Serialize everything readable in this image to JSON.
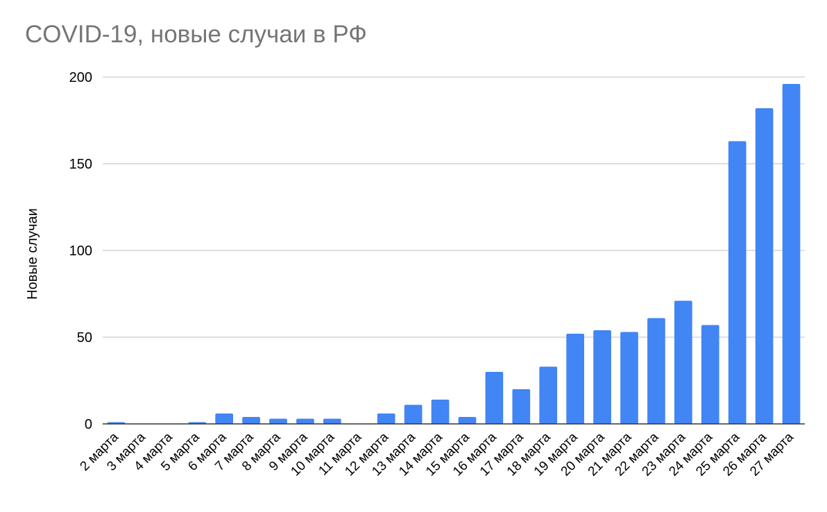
{
  "chart_data": {
    "type": "bar",
    "title": "COVID-19, новые случаи в РФ",
    "xlabel": "",
    "ylabel": "Новые случаи",
    "ylim": [
      0,
      200
    ],
    "yticks": [
      0,
      50,
      100,
      150,
      200
    ],
    "grid": true,
    "bar_color": "#4285f4",
    "categories": [
      "2 марта",
      "3 марта",
      "4 марта",
      "5 марта",
      "6 марта",
      "7 марта",
      "8 марта",
      "9 марта",
      "10 марта",
      "11 марта",
      "12 марта",
      "13 марта",
      "14 марта",
      "15 марта",
      "16 марта",
      "17 марта",
      "18 марта",
      "19 марта",
      "20 марта",
      "21 марта",
      "22 марта",
      "23 марта",
      "24 марта",
      "25 марта",
      "26 марта",
      "27 марта"
    ],
    "values": [
      1,
      0,
      0,
      1,
      6,
      4,
      3,
      3,
      3,
      0,
      6,
      11,
      14,
      4,
      30,
      20,
      33,
      52,
      54,
      53,
      61,
      71,
      57,
      163,
      182,
      196
    ]
  }
}
